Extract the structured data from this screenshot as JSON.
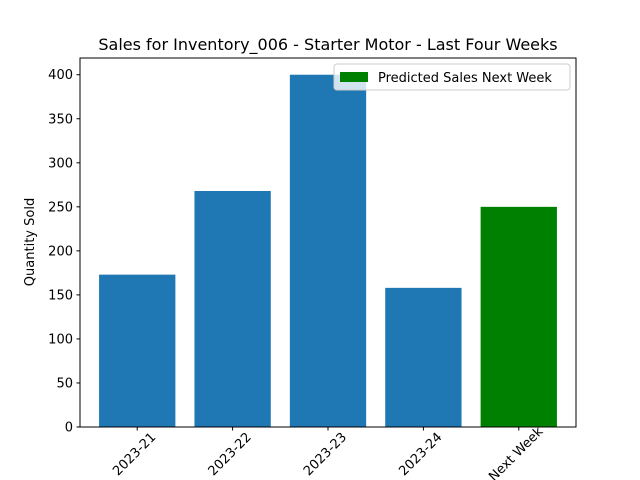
{
  "chart_data": {
    "type": "bar",
    "title": "Sales for Inventory_006 - Starter Motor - Last Four Weeks",
    "y_label": "Quantity Sold",
    "categories": [
      "2023-21",
      "2023-22",
      "2023-23",
      "2023-24",
      "Next Week"
    ],
    "values": [
      173,
      268,
      400,
      158,
      250
    ],
    "colors": [
      "#1f77b4",
      "#1f77b4",
      "#1f77b4",
      "#1f77b4",
      "#008000"
    ],
    "ylim": [
      0,
      419
    ],
    "yticks": [
      0,
      50,
      100,
      150,
      200,
      250,
      300,
      350,
      400
    ],
    "legend": {
      "label": "Predicted Sales Next Week",
      "color": "#008000",
      "loc": "upper right"
    }
  }
}
